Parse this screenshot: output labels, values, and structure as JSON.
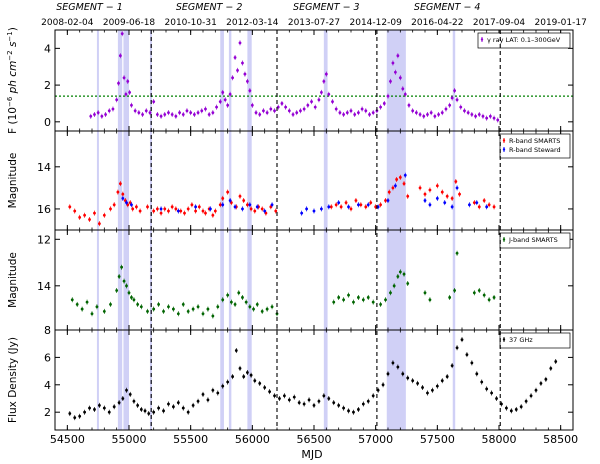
{
  "chart_data": [
    {
      "type": "scatter",
      "panel": "gamma",
      "ylabel": "F (10$^{-6}$ ph cm$^{-2}$ s$^{-1}$)",
      "ylabel_parts": [
        "F (10",
        "−6",
        " ph cm",
        "−2",
        " s",
        "−1",
        ")"
      ],
      "ylim": [
        -0.5,
        5
      ],
      "yticks": [
        0,
        2,
        4
      ],
      "legend": "γ ray LAT: 0.1–300GeV",
      "threshold_line": 1.4,
      "series": [
        {
          "name": "γ ray LAT: 0.1–300GeV",
          "color": "#9400d3",
          "x": [
            54690,
            54720,
            54750,
            54780,
            54810,
            54840,
            54870,
            54900,
            54915,
            54930,
            54945,
            54960,
            54975,
            54990,
            55005,
            55020,
            55050,
            55080,
            55110,
            55140,
            55170,
            55200,
            55230,
            55260,
            55290,
            55320,
            55350,
            55380,
            55410,
            55440,
            55470,
            55500,
            55530,
            55560,
            55590,
            55620,
            55650,
            55680,
            55710,
            55740,
            55760,
            55780,
            55800,
            55820,
            55840,
            55860,
            55880,
            55900,
            55920,
            55940,
            55960,
            55980,
            56000,
            56030,
            56060,
            56090,
            56120,
            56150,
            56180,
            56210,
            56240,
            56270,
            56300,
            56330,
            56360,
            56390,
            56420,
            56450,
            56480,
            56510,
            56540,
            56560,
            56580,
            56600,
            56620,
            56650,
            56680,
            56710,
            56740,
            56770,
            56800,
            56830,
            56860,
            56890,
            56920,
            56950,
            56980,
            57010,
            57040,
            57070,
            57100,
            57120,
            57140,
            57160,
            57180,
            57200,
            57220,
            57240,
            57270,
            57300,
            57330,
            57360,
            57390,
            57420,
            57450,
            57480,
            57510,
            57540,
            57570,
            57600,
            57620,
            57640,
            57660,
            57690,
            57720,
            57750,
            57780,
            57810,
            57840,
            57870,
            57900,
            57930,
            57960,
            57990
          ],
          "y": [
            0.3,
            0.4,
            0.5,
            0.3,
            0.4,
            0.6,
            0.7,
            1.2,
            2.1,
            3.6,
            4.8,
            2.4,
            1.5,
            2.2,
            1.6,
            0.9,
            0.6,
            0.5,
            0.4,
            0.6,
            0.5,
            1.1,
            0.4,
            0.3,
            0.4,
            0.5,
            0.4,
            0.3,
            0.5,
            0.4,
            0.6,
            0.5,
            0.4,
            0.5,
            0.6,
            0.7,
            0.4,
            0.5,
            0.8,
            1.1,
            1.6,
            1.2,
            0.9,
            1.5,
            2.4,
            3.5,
            2.8,
            4.3,
            3.2,
            2.6,
            2.2,
            1.7,
            0.9,
            0.5,
            0.4,
            0.6,
            0.5,
            0.7,
            0.6,
            0.8,
            1.0,
            0.8,
            0.6,
            0.4,
            0.5,
            0.6,
            0.7,
            0.9,
            1.1,
            0.8,
            1.2,
            1.6,
            2.2,
            2.6,
            1.5,
            1.1,
            0.7,
            0.5,
            0.4,
            0.5,
            0.6,
            0.4,
            0.5,
            0.7,
            0.6,
            0.4,
            0.5,
            0.6,
            0.8,
            1.0,
            1.4,
            2.2,
            3.2,
            2.7,
            3.6,
            2.4,
            1.8,
            1.5,
            0.9,
            0.6,
            0.5,
            0.4,
            0.3,
            0.4,
            0.5,
            0.3,
            0.4,
            0.5,
            0.7,
            0.9,
            1.3,
            1.7,
            1.2,
            0.8,
            0.6,
            0.5,
            0.4,
            0.3,
            0.4,
            0.3,
            0.2,
            0.3,
            0.2,
            0.1
          ]
        }
      ]
    },
    {
      "type": "scatter",
      "panel": "rband",
      "ylabel": "Magnitude",
      "ylim": [
        17.0,
        12.3
      ],
      "yticks": [
        14,
        16
      ],
      "legend": [
        "R-band SMARTS",
        "R-band Steward"
      ],
      "series": [
        {
          "name": "R-band SMARTS",
          "color": "#ff0000",
          "x": [
            54520,
            54560,
            54600,
            54640,
            54680,
            54720,
            54760,
            54800,
            54850,
            54880,
            54910,
            54930,
            54950,
            54970,
            54990,
            55010,
            55030,
            55060,
            55090,
            55150,
            55200,
            55230,
            55260,
            55290,
            55320,
            55350,
            55380,
            55420,
            55450,
            55480,
            55510,
            55540,
            55570,
            55600,
            55620,
            55650,
            55680,
            55700,
            55740,
            55760,
            55800,
            55830,
            55870,
            55900,
            55930,
            55960,
            55990,
            56020,
            56050,
            56080,
            56110,
            56150,
            56190,
            56640,
            56680,
            56720,
            56760,
            56800,
            56840,
            56880,
            56920,
            56960,
            57000,
            57040,
            57080,
            57110,
            57140,
            57170,
            57200,
            57230,
            57260,
            57360,
            57400,
            57440,
            57500,
            57540,
            57580,
            57620,
            57650,
            57680,
            57800,
            57840,
            57880,
            57920,
            57960
          ],
          "y": [
            15.9,
            16.1,
            16.4,
            16.3,
            16.5,
            16.2,
            16.7,
            16.3,
            16.0,
            15.8,
            15.2,
            14.8,
            15.3,
            15.6,
            15.8,
            15.7,
            16.0,
            15.9,
            16.1,
            15.9,
            16.1,
            16.0,
            16.2,
            16.0,
            16.1,
            15.9,
            16.0,
            16.1,
            16.2,
            16.0,
            15.8,
            16.1,
            15.9,
            16.1,
            16.2,
            16.0,
            16.3,
            16.1,
            15.8,
            15.5,
            15.2,
            15.7,
            15.9,
            15.4,
            15.6,
            15.8,
            16.0,
            16.1,
            15.9,
            16.0,
            16.2,
            15.9,
            16.1,
            15.9,
            15.8,
            15.9,
            15.7,
            16.0,
            15.6,
            15.8,
            15.9,
            15.7,
            15.9,
            15.8,
            15.6,
            15.2,
            15.0,
            14.6,
            14.5,
            14.8,
            15.4,
            15.0,
            15.3,
            15.1,
            14.9,
            15.2,
            15.4,
            15.5,
            14.7,
            15.3,
            15.7,
            15.9,
            15.6,
            15.8,
            15.9
          ]
        },
        {
          "name": "R-band Steward",
          "color": "#0000ff",
          "x": [
            54950,
            54980,
            55020,
            55260,
            55400,
            55540,
            55660,
            55760,
            55820,
            55860,
            55920,
            55980,
            56040,
            56100,
            56160,
            56400,
            56440,
            56500,
            56560,
            56620,
            56700,
            56780,
            56860,
            56940,
            57020,
            57100,
            57160,
            57240,
            57400,
            57440,
            57500,
            57560,
            57620,
            57660,
            57760,
            57820,
            57900
          ],
          "y": [
            15.5,
            15.7,
            15.8,
            16.0,
            16.1,
            15.9,
            16.0,
            15.8,
            15.6,
            15.9,
            16.0,
            15.8,
            15.9,
            16.1,
            15.8,
            16.2,
            16.0,
            16.1,
            16.0,
            15.9,
            15.7,
            15.9,
            15.8,
            15.8,
            15.9,
            15.6,
            14.9,
            14.4,
            15.6,
            15.8,
            15.5,
            15.7,
            15.9,
            15.0,
            15.8,
            15.7,
            15.9
          ]
        }
      ]
    },
    {
      "type": "scatter",
      "panel": "jband",
      "ylabel": "Magnitude",
      "ylim": [
        15.9,
        11.6
      ],
      "yticks": [
        12,
        14
      ],
      "legend": "J-band SMARTS",
      "series": [
        {
          "name": "J-band SMARTS",
          "color": "#006400",
          "x": [
            54540,
            54580,
            54620,
            54660,
            54700,
            54740,
            54800,
            54850,
            54900,
            54920,
            54940,
            54960,
            54980,
            55000,
            55020,
            55040,
            55070,
            55100,
            55150,
            55200,
            55240,
            55280,
            55320,
            55360,
            55400,
            55440,
            55480,
            55520,
            55560,
            55600,
            55640,
            55680,
            55720,
            55760,
            55800,
            55830,
            55860,
            55890,
            55920,
            55950,
            55980,
            56010,
            56040,
            56080,
            56120,
            56160,
            56200,
            56660,
            56700,
            56740,
            56780,
            56820,
            56860,
            56900,
            56940,
            56980,
            57040,
            57080,
            57120,
            57150,
            57180,
            57200,
            57230,
            57260,
            57400,
            57440,
            57600,
            57640,
            57660,
            57800,
            57840,
            57880,
            57920,
            57960
          ],
          "y": [
            14.6,
            14.8,
            15.0,
            14.7,
            15.2,
            14.9,
            15.1,
            14.8,
            14.2,
            13.6,
            13.2,
            13.8,
            14.0,
            14.3,
            14.5,
            14.6,
            14.8,
            14.9,
            15.1,
            15.0,
            14.8,
            15.1,
            14.9,
            15.0,
            15.2,
            14.8,
            15.1,
            15.0,
            14.9,
            15.2,
            15.0,
            15.3,
            14.9,
            14.6,
            14.4,
            14.7,
            14.8,
            14.3,
            14.5,
            14.7,
            14.9,
            15.0,
            14.8,
            15.1,
            15.0,
            14.9,
            15.2,
            14.7,
            14.5,
            14.6,
            14.4,
            14.7,
            14.5,
            14.6,
            14.5,
            14.7,
            14.8,
            14.6,
            14.3,
            14.0,
            13.6,
            13.4,
            13.5,
            13.9,
            14.3,
            14.6,
            14.5,
            14.2,
            12.6,
            14.3,
            14.2,
            14.4,
            14.6,
            14.5
          ]
        }
      ]
    },
    {
      "type": "scatter",
      "panel": "radio",
      "ylabel": "Flux Density (Jy)",
      "xlabel": "MJD",
      "ylim": [
        0.7,
        8.0
      ],
      "yticks": [
        2,
        4,
        6,
        8
      ],
      "legend": "37 GHz",
      "series": [
        {
          "name": "37 GHz",
          "color": "#000000",
          "x": [
            54520,
            54560,
            54600,
            54640,
            54680,
            54720,
            54760,
            54800,
            54840,
            54880,
            54920,
            54950,
            54980,
            55010,
            55040,
            55070,
            55100,
            55130,
            55160,
            55200,
            55240,
            55280,
            55320,
            55360,
            55400,
            55440,
            55480,
            55520,
            55560,
            55600,
            55640,
            55680,
            55720,
            55760,
            55800,
            55840,
            55870,
            55900,
            55930,
            55960,
            55990,
            56020,
            56060,
            56100,
            56140,
            56180,
            56220,
            56260,
            56300,
            56340,
            56380,
            56420,
            56460,
            56500,
            56540,
            56580,
            56620,
            56660,
            56700,
            56740,
            56780,
            56820,
            56860,
            56900,
            56940,
            56980,
            57020,
            57060,
            57100,
            57140,
            57180,
            57220,
            57260,
            57300,
            57340,
            57380,
            57420,
            57460,
            57500,
            57540,
            57580,
            57620,
            57660,
            57700,
            57740,
            57780,
            57820,
            57860,
            57900,
            57940,
            57980,
            58020,
            58060,
            58100,
            58140,
            58180,
            58220,
            58260,
            58300,
            58340,
            58380,
            58420,
            58460
          ],
          "y": [
            1.9,
            1.6,
            1.7,
            2.0,
            2.3,
            2.2,
            2.5,
            2.3,
            2.0,
            2.4,
            2.7,
            3.0,
            3.6,
            3.3,
            2.8,
            2.5,
            2.2,
            2.1,
            1.9,
            2.0,
            2.3,
            2.1,
            2.6,
            2.4,
            2.7,
            2.3,
            2.0,
            2.5,
            2.8,
            3.3,
            2.9,
            3.6,
            3.4,
            3.9,
            4.2,
            4.6,
            6.5,
            5.2,
            4.6,
            4.9,
            4.7,
            4.3,
            4.1,
            3.8,
            3.5,
            3.2,
            3.0,
            3.2,
            2.9,
            3.1,
            2.7,
            2.6,
            2.9,
            2.5,
            2.8,
            3.2,
            3.0,
            2.7,
            2.5,
            2.3,
            2.1,
            2.0,
            2.2,
            2.6,
            2.8,
            3.2,
            3.6,
            4.0,
            4.8,
            5.6,
            5.3,
            4.8,
            4.5,
            4.3,
            4.1,
            3.8,
            3.4,
            3.6,
            3.9,
            4.3,
            4.6,
            5.4,
            6.7,
            7.3,
            6.2,
            5.6,
            4.8,
            4.2,
            3.7,
            3.4,
            3.0,
            2.6,
            2.3,
            2.1,
            2.2,
            2.4,
            2.8,
            3.2,
            3.6,
            4.1,
            4.4,
            5.2,
            5.7
          ]
        }
      ]
    }
  ],
  "x_axis": {
    "label": "MJD",
    "xlim": [
      54400,
      58600
    ],
    "ticks": [
      54500,
      55000,
      55500,
      56000,
      56500,
      57000,
      57500,
      58000,
      58500
    ],
    "tick_labels": [
      "54500",
      "55000",
      "55500",
      "56000",
      "56500",
      "57000",
      "57500",
      "58000",
      "58500"
    ]
  },
  "top_axis": {
    "dates": [
      {
        "mjd": 54500,
        "label": "2008-02-04"
      },
      {
        "mjd": 55000,
        "label": "2009-06-18"
      },
      {
        "mjd": 55500,
        "label": "2010-10-31"
      },
      {
        "mjd": 56000,
        "label": "2012-03-14"
      },
      {
        "mjd": 56500,
        "label": "2013-07-27"
      },
      {
        "mjd": 57000,
        "label": "2014-12-09"
      },
      {
        "mjd": 57500,
        "label": "2016-04-22"
      },
      {
        "mjd": 58000,
        "label": "2017-09-04"
      },
      {
        "mjd": 58500,
        "label": "2019-01-17"
      }
    ],
    "segments": [
      {
        "mjd": 54680,
        "label": "SEGMENT − 1"
      },
      {
        "mjd": 55650,
        "label": "SEGMENT − 2"
      },
      {
        "mjd": 56600,
        "label": "SEGMENT − 3"
      },
      {
        "mjd": 57580,
        "label": "SEGMENT − 4"
      }
    ]
  },
  "segment_boundaries": [
    55180,
    56200,
    57010,
    58010
  ],
  "shaded_bands": [
    [
      54740,
      54745
    ],
    [
      54910,
      54945
    ],
    [
      54955,
      55000
    ],
    [
      55170,
      55180
    ],
    [
      55740,
      55770
    ],
    [
      55810,
      55830
    ],
    [
      55960,
      55995
    ],
    [
      56580,
      56610
    ],
    [
      57090,
      57245
    ],
    [
      57625,
      57645
    ]
  ],
  "colors": {
    "band": "#c8c8f5",
    "threshold": "#008000",
    "boundary": "#000000"
  }
}
